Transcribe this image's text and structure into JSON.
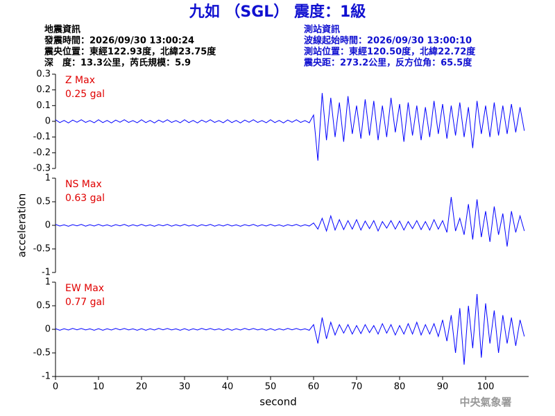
{
  "title": "九如 （SGL） 震度：1級",
  "info_left": [
    "地震資訊",
    "發震時間：2026/09/30 13:00:24",
    "震央位置：東經122.93度，北緯23.75度",
    "深　度：13.3公里，芮氏規模：5.9"
  ],
  "info_right": [
    "測站資訊",
    "波線起始時間：2026/09/30 13:00:10",
    "測站位置：東經120.50度，北緯22.72度",
    "震央距：273.2公里，反方位角：65.5度"
  ],
  "footer": "中央氣象署",
  "chart_data": [
    {
      "type": "line",
      "annotations": [
        "Z Max",
        "0.25 gal"
      ],
      "color": "#0000ff",
      "xlim": [
        0,
        110
      ],
      "ylim": [
        -0.3,
        0.3
      ],
      "yticks": [
        -0.3,
        -0.2,
        -0.1,
        0,
        0.1,
        0.2,
        0.3
      ],
      "x": [
        0,
        1,
        2,
        3,
        4,
        5,
        6,
        7,
        8,
        9,
        10,
        11,
        12,
        13,
        14,
        15,
        16,
        17,
        18,
        19,
        20,
        21,
        22,
        23,
        24,
        25,
        26,
        27,
        28,
        29,
        30,
        31,
        32,
        33,
        34,
        35,
        36,
        37,
        38,
        39,
        40,
        41,
        42,
        43,
        44,
        45,
        46,
        47,
        48,
        49,
        50,
        51,
        52,
        53,
        54,
        55,
        56,
        57,
        58,
        59,
        60,
        61,
        62,
        63,
        64,
        65,
        66,
        67,
        68,
        69,
        70,
        71,
        72,
        73,
        74,
        75,
        76,
        77,
        78,
        79,
        80,
        81,
        82,
        83,
        84,
        85,
        86,
        87,
        88,
        89,
        90,
        91,
        92,
        93,
        94,
        95,
        96,
        97,
        98,
        99,
        100,
        101,
        102,
        103,
        104,
        105,
        106,
        107,
        108,
        109
      ],
      "values": [
        0.01,
        -0.008,
        0.006,
        -0.01,
        0.008,
        -0.006,
        0.01,
        -0.007,
        0.005,
        -0.009,
        0.01,
        -0.008,
        0.006,
        -0.01,
        0.008,
        -0.006,
        0.01,
        -0.007,
        0.005,
        -0.009,
        0.01,
        -0.008,
        0.006,
        -0.01,
        0.008,
        -0.006,
        0.01,
        -0.007,
        0.005,
        -0.009,
        0.01,
        -0.008,
        0.006,
        -0.01,
        0.008,
        -0.006,
        0.01,
        -0.007,
        0.005,
        -0.009,
        0.01,
        -0.008,
        0.006,
        -0.01,
        0.008,
        -0.006,
        0.01,
        -0.007,
        0.005,
        -0.009,
        0.01,
        -0.008,
        0.006,
        -0.01,
        0.008,
        -0.006,
        0.01,
        -0.007,
        0.005,
        -0.009,
        0.04,
        -0.25,
        0.18,
        -0.12,
        0.15,
        -0.1,
        0.12,
        -0.13,
        0.16,
        -0.08,
        0.1,
        -0.11,
        0.14,
        -0.09,
        0.13,
        -0.12,
        0.1,
        -0.1,
        0.15,
        -0.07,
        0.11,
        -0.13,
        0.12,
        -0.09,
        0.1,
        -0.12,
        0.09,
        -0.1,
        0.13,
        -0.08,
        0.11,
        -0.11,
        0.1,
        -0.09,
        0.12,
        -0.1,
        0.09,
        -0.17,
        0.13,
        -0.08,
        0.1,
        -0.1,
        0.12,
        -0.09,
        0.1,
        -0.08,
        0.11,
        -0.07,
        0.09,
        -0.06
      ]
    },
    {
      "type": "line",
      "annotations": [
        "NS Max",
        "0.63 gal"
      ],
      "color": "#0000ff",
      "ylabel": "acceleration",
      "xlim": [
        0,
        110
      ],
      "ylim": [
        -1,
        1
      ],
      "yticks": [
        -1,
        -0.5,
        0,
        0.5,
        1
      ],
      "x": [
        0,
        1,
        2,
        3,
        4,
        5,
        6,
        7,
        8,
        9,
        10,
        11,
        12,
        13,
        14,
        15,
        16,
        17,
        18,
        19,
        20,
        21,
        22,
        23,
        24,
        25,
        26,
        27,
        28,
        29,
        30,
        31,
        32,
        33,
        34,
        35,
        36,
        37,
        38,
        39,
        40,
        41,
        42,
        43,
        44,
        45,
        46,
        47,
        48,
        49,
        50,
        51,
        52,
        53,
        54,
        55,
        56,
        57,
        58,
        59,
        60,
        61,
        62,
        63,
        64,
        65,
        66,
        67,
        68,
        69,
        70,
        71,
        72,
        73,
        74,
        75,
        76,
        77,
        78,
        79,
        80,
        81,
        82,
        83,
        84,
        85,
        86,
        87,
        88,
        89,
        90,
        91,
        92,
        93,
        94,
        95,
        96,
        97,
        98,
        99,
        100,
        101,
        102,
        103,
        104,
        105,
        106,
        107,
        108,
        109
      ],
      "values": [
        0.02,
        -0.015,
        0.01,
        -0.02,
        0.015,
        -0.01,
        0.02,
        -0.018,
        0.012,
        -0.015,
        0.02,
        -0.015,
        0.01,
        -0.02,
        0.015,
        -0.01,
        0.02,
        -0.018,
        0.012,
        -0.015,
        0.02,
        -0.015,
        0.01,
        -0.02,
        0.015,
        -0.01,
        0.02,
        -0.018,
        0.012,
        -0.015,
        0.02,
        -0.015,
        0.01,
        -0.02,
        0.015,
        -0.01,
        0.02,
        -0.018,
        0.012,
        -0.015,
        0.02,
        -0.015,
        0.01,
        -0.02,
        0.015,
        -0.01,
        0.02,
        -0.018,
        0.012,
        -0.015,
        0.02,
        -0.015,
        0.01,
        -0.02,
        0.015,
        -0.01,
        0.02,
        -0.018,
        0.012,
        -0.015,
        0.05,
        -0.08,
        0.15,
        -0.12,
        0.2,
        -0.1,
        0.12,
        -0.09,
        0.1,
        -0.08,
        0.12,
        -0.1,
        0.09,
        -0.07,
        0.1,
        -0.12,
        0.08,
        -0.06,
        0.1,
        -0.08,
        0.09,
        -0.1,
        0.08,
        -0.07,
        0.1,
        -0.09,
        0.08,
        -0.1,
        0.12,
        -0.08,
        0.1,
        -0.15,
        0.6,
        -0.12,
        0.15,
        -0.2,
        0.45,
        -0.3,
        0.55,
        -0.25,
        0.3,
        -0.35,
        0.4,
        -0.2,
        0.25,
        -0.45,
        0.3,
        -0.15,
        0.2,
        -0.12
      ]
    },
    {
      "type": "line",
      "annotations": [
        "EW Max",
        "0.77 gal"
      ],
      "color": "#0000ff",
      "xlabel": "second",
      "xlim": [
        0,
        110
      ],
      "xticks": [
        0,
        10,
        20,
        30,
        40,
        50,
        60,
        70,
        80,
        90,
        100
      ],
      "ylim": [
        -1,
        1
      ],
      "yticks": [
        -1,
        -0.5,
        0,
        0.5,
        1
      ],
      "x": [
        0,
        1,
        2,
        3,
        4,
        5,
        6,
        7,
        8,
        9,
        10,
        11,
        12,
        13,
        14,
        15,
        16,
        17,
        18,
        19,
        20,
        21,
        22,
        23,
        24,
        25,
        26,
        27,
        28,
        29,
        30,
        31,
        32,
        33,
        34,
        35,
        36,
        37,
        38,
        39,
        40,
        41,
        42,
        43,
        44,
        45,
        46,
        47,
        48,
        49,
        50,
        51,
        52,
        53,
        54,
        55,
        56,
        57,
        58,
        59,
        60,
        61,
        62,
        63,
        64,
        65,
        66,
        67,
        68,
        69,
        70,
        71,
        72,
        73,
        74,
        75,
        76,
        77,
        78,
        79,
        80,
        81,
        82,
        83,
        84,
        85,
        86,
        87,
        88,
        89,
        90,
        91,
        92,
        93,
        94,
        95,
        96,
        97,
        98,
        99,
        100,
        101,
        102,
        103,
        104,
        105,
        106,
        107,
        108,
        109
      ],
      "values": [
        0.015,
        -0.02,
        0.012,
        -0.015,
        0.02,
        -0.01,
        0.018,
        -0.012,
        0.01,
        -0.02,
        0.015,
        -0.02,
        0.012,
        -0.015,
        0.02,
        -0.01,
        0.018,
        -0.012,
        0.01,
        -0.02,
        0.015,
        -0.02,
        0.012,
        -0.015,
        0.02,
        -0.01,
        0.018,
        -0.012,
        0.01,
        -0.02,
        0.015,
        -0.02,
        0.012,
        -0.015,
        0.02,
        -0.01,
        0.018,
        -0.012,
        0.01,
        -0.02,
        0.015,
        -0.02,
        0.012,
        -0.015,
        0.02,
        -0.01,
        0.018,
        -0.012,
        0.01,
        -0.02,
        0.015,
        -0.02,
        0.012,
        -0.015,
        0.02,
        -0.01,
        0.018,
        -0.012,
        0.01,
        -0.02,
        0.1,
        -0.3,
        0.25,
        -0.2,
        0.15,
        -0.12,
        0.1,
        -0.08,
        0.1,
        -0.1,
        0.08,
        -0.09,
        0.1,
        -0.07,
        0.08,
        -0.1,
        0.12,
        -0.08,
        0.1,
        -0.12,
        0.08,
        -0.1,
        0.12,
        -0.1,
        0.15,
        -0.12,
        0.1,
        -0.1,
        0.12,
        -0.15,
        0.2,
        -0.25,
        0.3,
        -0.5,
        0.45,
        -0.75,
        0.5,
        -0.4,
        0.75,
        -0.6,
        0.55,
        -0.3,
        0.4,
        -0.5,
        0.3,
        -0.3,
        0.25,
        -0.35,
        0.2,
        -0.15
      ]
    }
  ]
}
